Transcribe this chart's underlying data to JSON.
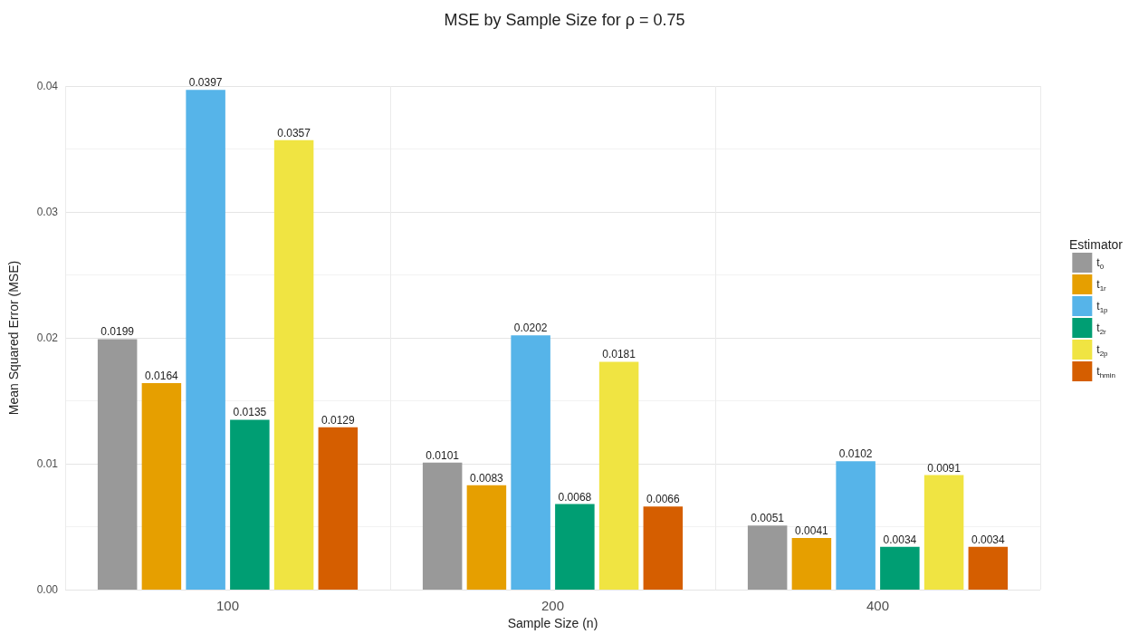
{
  "chart_data": {
    "type": "bar",
    "title": "MSE by Sample Size for ρ = 0.75",
    "xlabel": "Sample Size (n)",
    "ylabel": "Mean Squared Error (MSE)",
    "legend_title": "Estimator",
    "categories": [
      "100",
      "200",
      "400"
    ],
    "series": [
      {
        "name": "t$_{0}$",
        "color": "#999999",
        "values": [
          0.0199,
          0.0101,
          0.0051
        ]
      },
      {
        "name": "t$_{1r}$",
        "color": "#e69f00",
        "values": [
          0.0164,
          0.0083,
          0.0041
        ]
      },
      {
        "name": "t$_{1p}$",
        "color": "#56b4e9",
        "values": [
          0.0397,
          0.0202,
          0.0102
        ]
      },
      {
        "name": "t$_{2r}$",
        "color": "#009e73",
        "values": [
          0.0135,
          0.0068,
          0.0034
        ]
      },
      {
        "name": "t$_{2p}$",
        "color": "#f0e442",
        "values": [
          0.0357,
          0.0181,
          0.0091
        ]
      },
      {
        "name": "t$_{hmin}$",
        "color": "#d55e00",
        "values": [
          0.0129,
          0.0066,
          0.0034
        ]
      }
    ],
    "ylim": [
      0,
      0.04
    ],
    "yticks": [
      {
        "value": 0,
        "label": "0.00"
      },
      {
        "value": 0.01,
        "label": "0.01"
      },
      {
        "value": 0.02,
        "label": "0.02"
      },
      {
        "value": 0.03,
        "label": "0.03"
      },
      {
        "value": 0.04,
        "label": "0.04"
      }
    ],
    "grid": true,
    "legend": "right",
    "data_labels": true
  }
}
